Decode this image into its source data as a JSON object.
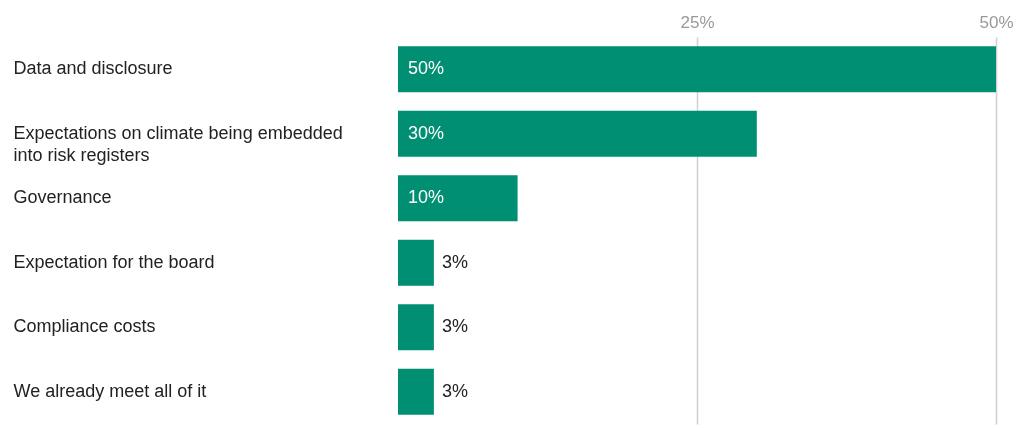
{
  "chart_data": {
    "type": "bar",
    "orientation": "horizontal",
    "categories": [
      "Data and disclosure",
      "Expectations on climate being embedded into risk registers",
      "Governance",
      "Expectation for the board",
      "Compliance costs",
      "We already meet all of it"
    ],
    "values": [
      50,
      30,
      10,
      3,
      3,
      3
    ],
    "value_labels": [
      "50%",
      "30%",
      "10%",
      "3%",
      "3%",
      "3%"
    ],
    "color": "#008f72",
    "xlim": [
      0,
      50
    ],
    "xticks": [
      {
        "value": 25,
        "label": "25%"
      },
      {
        "value": 50,
        "label": "50%"
      }
    ],
    "grid": "x"
  }
}
